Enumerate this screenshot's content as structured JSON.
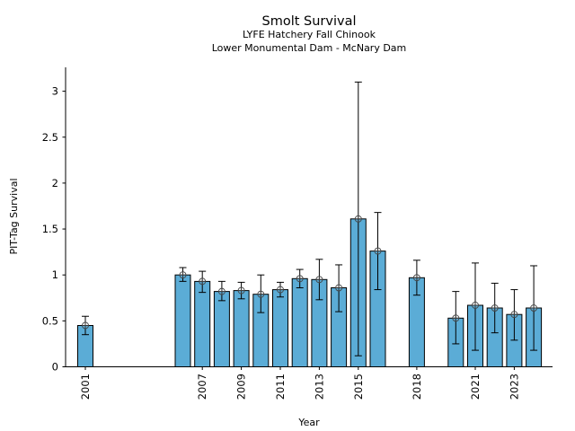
{
  "chart_data": {
    "type": "bar",
    "title": "Smolt Survival",
    "subtitles": [
      "LYFE Hatchery Fall Chinook",
      "Lower Monumental Dam - McNary Dam"
    ],
    "xlabel": "Year",
    "ylabel": "PIT-Tag Survival",
    "ylim": [
      0,
      3.25
    ],
    "xlim": [
      2000.0,
      2025.0
    ],
    "yticks": [
      0,
      0.5,
      1,
      1.5,
      2,
      2.5,
      3
    ],
    "ytick_labels": [
      "0",
      "0.5",
      "1",
      "1.5",
      "2",
      "2.5",
      "3"
    ],
    "xticks": [
      2001,
      2007,
      2009,
      2011,
      2013,
      2015,
      2018,
      2021,
      2023
    ],
    "xtick_labels": [
      "2001",
      "2007",
      "2009",
      "2011",
      "2013",
      "2015",
      "2018",
      "2021",
      "2023"
    ],
    "bar_color": "#5bacd6",
    "grid": false,
    "series": [
      {
        "name": "PIT-Tag Survival",
        "x": [
          2001,
          2006,
          2007,
          2008,
          2009,
          2010,
          2011,
          2012,
          2013,
          2014,
          2015,
          2016,
          2018,
          2020,
          2021,
          2022,
          2023,
          2024
        ],
        "values": [
          0.45,
          1.0,
          0.93,
          0.82,
          0.83,
          0.79,
          0.84,
          0.96,
          0.95,
          0.86,
          1.61,
          1.26,
          0.97,
          0.53,
          0.67,
          0.64,
          0.57,
          0.64
        ],
        "upper": [
          0.55,
          1.08,
          1.04,
          0.93,
          0.92,
          1.0,
          0.92,
          1.06,
          1.17,
          1.11,
          3.1,
          1.68,
          1.16,
          0.82,
          1.13,
          0.91,
          0.84,
          1.1
        ],
        "lower": [
          0.35,
          0.93,
          0.81,
          0.72,
          0.74,
          0.59,
          0.76,
          0.86,
          0.73,
          0.6,
          0.12,
          0.84,
          0.78,
          0.25,
          0.18,
          0.37,
          0.29,
          0.18
        ]
      }
    ]
  }
}
